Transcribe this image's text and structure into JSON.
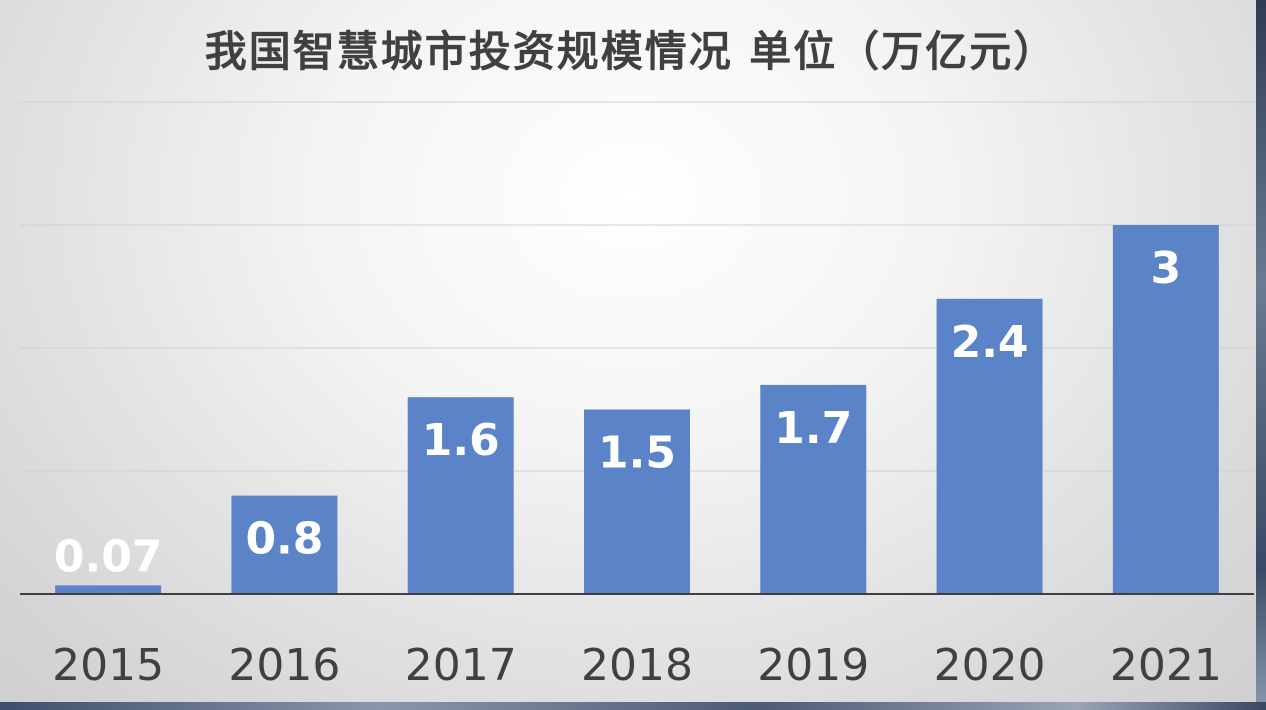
{
  "chart_data": {
    "type": "bar",
    "title": "我国智慧城市投资规模情况 单位（万亿元）",
    "categories": [
      "2015",
      "2016",
      "2017",
      "2018",
      "2019",
      "2020",
      "2021"
    ],
    "values": [
      0.07,
      0.8,
      1.6,
      1.5,
      1.7,
      2.4,
      3
    ],
    "value_labels": [
      "0.07",
      "0.8",
      "1.6",
      "1.5",
      "1.7",
      "2.4",
      "3"
    ],
    "ylim": [
      0,
      4
    ],
    "grid": true,
    "legend": "none",
    "xlabel": "",
    "ylabel": "",
    "bar_color": "#5b84c8",
    "label_color": "#ffffff",
    "gridline_color": "#d0d0d0",
    "axis_color": "#404040"
  }
}
